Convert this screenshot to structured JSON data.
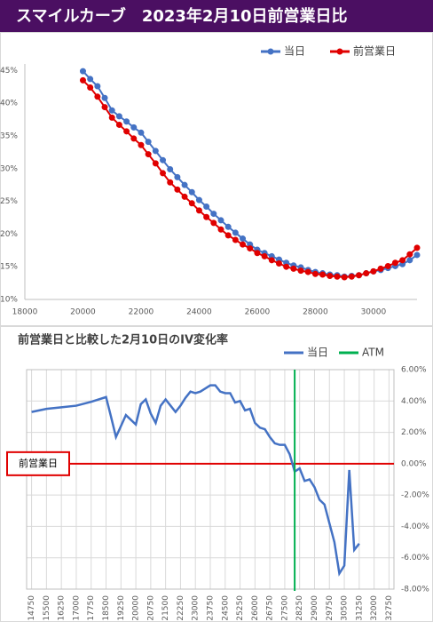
{
  "chart_data": [
    {
      "type": "line",
      "title": "スマイルカーブ　2023年2月10日前営業日比",
      "x": [
        20000,
        20250,
        20500,
        20750,
        21000,
        21250,
        21500,
        21750,
        22000,
        22250,
        22500,
        22750,
        23000,
        23250,
        23500,
        23750,
        24000,
        24250,
        24500,
        24750,
        25000,
        25250,
        25500,
        25750,
        26000,
        26250,
        26500,
        26750,
        27000,
        27250,
        27500,
        27750,
        28000,
        28250,
        28500,
        28750,
        29000,
        29250,
        29500,
        29750,
        30000,
        30250,
        30500,
        30750,
        31000,
        31250,
        31500
      ],
      "series": [
        {
          "name": "当日",
          "color": "#4472c4",
          "values": [
            44.9,
            43.7,
            42.6,
            40.8,
            38.9,
            38.0,
            37.2,
            36.3,
            35.5,
            34.1,
            32.7,
            31.3,
            29.9,
            28.7,
            27.5,
            26.4,
            25.2,
            24.2,
            23.1,
            22.1,
            21.1,
            20.2,
            19.3,
            18.4,
            17.6,
            17.1,
            16.6,
            16.1,
            15.6,
            15.2,
            14.9,
            14.5,
            14.2,
            14.0,
            13.8,
            13.7,
            13.5,
            13.6,
            13.7,
            14.0,
            14.3,
            14.5,
            14.8,
            15.1,
            15.4,
            16.0,
            16.8
          ]
        },
        {
          "name": "前営業日",
          "color": "#e00000",
          "values": [
            43.5,
            42.4,
            41.0,
            39.4,
            37.8,
            36.7,
            35.7,
            34.6,
            33.6,
            32.2,
            30.8,
            29.3,
            27.9,
            26.8,
            25.7,
            24.7,
            23.6,
            22.6,
            21.7,
            20.7,
            19.8,
            19.1,
            18.4,
            17.8,
            17.1,
            16.6,
            16.0,
            15.5,
            15.0,
            14.7,
            14.4,
            14.2,
            13.9,
            13.8,
            13.6,
            13.5,
            13.4,
            13.5,
            13.7,
            14.0,
            14.3,
            14.7,
            15.1,
            15.6,
            16.0,
            16.9,
            17.9
          ]
        }
      ],
      "xlim": [
        18000,
        31500
      ],
      "ylim": [
        10,
        46
      ],
      "xticks": [
        18000,
        20000,
        22000,
        24000,
        26000,
        28000,
        30000
      ],
      "yticks": [
        {
          "value": 10,
          "label": "10%"
        },
        {
          "value": 15,
          "label": "15%"
        },
        {
          "value": 20,
          "label": "20%"
        },
        {
          "value": 25,
          "label": "25%"
        },
        {
          "value": 30,
          "label": "30%"
        },
        {
          "value": 35,
          "label": "35%"
        },
        {
          "value": 40,
          "label": "40%"
        },
        {
          "value": 45,
          "label": "45%"
        }
      ],
      "grid": false,
      "legend": "top-right"
    },
    {
      "type": "line",
      "title": "前営業日と比較した2月10日のIV変化率",
      "x": [
        14750,
        15500,
        16250,
        17000,
        17750,
        18500,
        18750,
        19000,
        19250,
        19500,
        19750,
        20000,
        20250,
        20500,
        20750,
        21000,
        21250,
        21500,
        21750,
        22000,
        22250,
        22500,
        22750,
        23000,
        23250,
        23500,
        23750,
        24000,
        24250,
        24500,
        24750,
        25000,
        25250,
        25500,
        25750,
        26000,
        26250,
        26500,
        26750,
        27000,
        27250,
        27500,
        27750,
        28000,
        28250,
        28500,
        28750,
        29000,
        29250,
        29500,
        29750,
        30000,
        30250,
        30500,
        30750,
        31000,
        31250
      ],
      "series": [
        {
          "name": "当日",
          "color": "#4472c4",
          "values": [
            3.3,
            3.5,
            3.6,
            3.7,
            3.95,
            4.25,
            3.0,
            1.7,
            2.4,
            3.1,
            2.8,
            2.5,
            3.8,
            4.1,
            3.2,
            2.6,
            3.7,
            4.1,
            3.7,
            3.3,
            3.7,
            4.2,
            4.6,
            4.5,
            4.6,
            4.8,
            5.0,
            5.0,
            4.6,
            4.5,
            4.5,
            3.9,
            4.0,
            3.4,
            3.5,
            2.6,
            2.3,
            2.2,
            1.7,
            1.3,
            1.2,
            1.2,
            0.6,
            -0.5,
            -0.3,
            -1.1,
            -1.0,
            -1.5,
            -2.3,
            -2.6,
            -3.8,
            -5.0,
            -7.0,
            -6.5,
            -0.4,
            -5.5,
            -5.1
          ]
        }
      ],
      "atm": {
        "name": "ATM",
        "color": "#00b050",
        "x": 28000
      },
      "reference_line": {
        "label": "前営業日",
        "value": 0,
        "color": "#e00000"
      },
      "xlim": [
        14500,
        33000
      ],
      "ylim": [
        -8,
        6
      ],
      "xticks": [
        14750,
        15500,
        16250,
        17000,
        17750,
        18500,
        19250,
        20000,
        20750,
        21500,
        22250,
        23000,
        23750,
        24500,
        25250,
        26000,
        26750,
        27500,
        28250,
        29000,
        29750,
        30500,
        31250,
        32000,
        32750
      ],
      "yticks": [
        {
          "value": 6,
          "label": "6.00%"
        },
        {
          "value": 4,
          "label": "4.00%"
        },
        {
          "value": 2,
          "label": "2.00%"
        },
        {
          "value": 0,
          "label": "0.00%"
        },
        {
          "value": -2,
          "label": "-2.00%"
        },
        {
          "value": -4,
          "label": "-4.00%"
        },
        {
          "value": -6,
          "label": "-6.00%"
        },
        {
          "value": -8,
          "label": "-8.00%"
        }
      ],
      "grid": true,
      "legend": "top-right"
    }
  ]
}
